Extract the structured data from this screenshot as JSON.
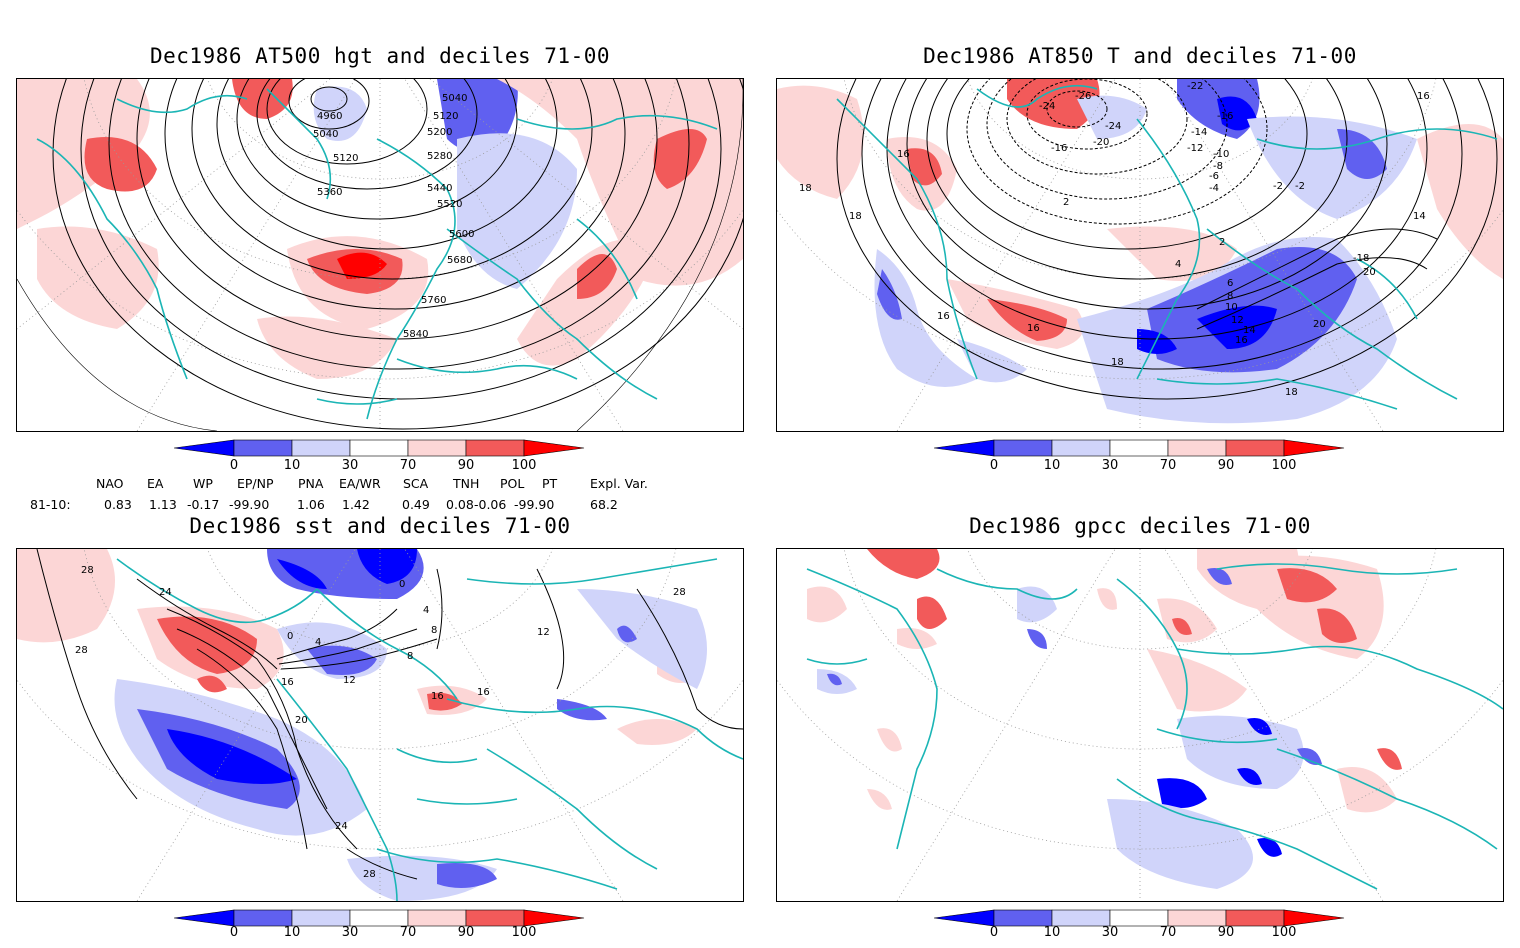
{
  "panels": [
    {
      "title": "Dec1986 AT500 hgt and deciles 71-00"
    },
    {
      "title": "Dec1986 AT850 T and deciles 71-00"
    },
    {
      "title": "Dec1986 sst and deciles 71-00"
    },
    {
      "title": "Dec1986 gpcc deciles 71-00"
    }
  ],
  "colorbar": {
    "ticks": [
      "0",
      "10",
      "30",
      "70",
      "90",
      "100"
    ],
    "colors": [
      "#0000ff",
      "#6060f0",
      "#d0d4fa",
      "#ffffff",
      "#fcd6d6",
      "#f25a5a",
      "#ff0000"
    ]
  },
  "indices": {
    "headers": [
      "NAO",
      "EA",
      "WP",
      "EP/NP",
      "PNA",
      "EA/WR",
      "SCA",
      "TNH",
      "POL",
      "PT",
      "Expl. Var."
    ],
    "row_label": "81-10:",
    "values": [
      "0.83",
      "1.13",
      "-0.17",
      "-99.90",
      "1.06",
      "1.42",
      "0.49",
      "0.08",
      "-0.06",
      "-99.90",
      "68.2"
    ]
  },
  "contour_labels": {
    "hgt": [
      "4960",
      "5040",
      "5040",
      "5120",
      "5120",
      "5200",
      "5280",
      "5360",
      "5440",
      "5520",
      "5600",
      "5680",
      "5760",
      "5840"
    ],
    "t850": [
      "-24",
      "-26",
      "-24",
      "-22",
      "-20",
      "-16",
      "-16",
      "-14",
      "-12",
      "-10",
      "-8",
      "-6",
      "-4",
      "-2",
      "2",
      "2",
      "4",
      "6",
      "8",
      "10",
      "12",
      "14",
      "14",
      "16",
      "16",
      "16",
      "16",
      "18",
      "18",
      "18",
      "18",
      "20",
      "20",
      "-18",
      "-2",
      "16"
    ],
    "sst": [
      "28",
      "28",
      "24",
      "24",
      "20",
      "16",
      "16",
      "16",
      "12",
      "12",
      "8",
      "8",
      "4",
      "4",
      "0",
      "0",
      "28",
      "28"
    ]
  },
  "colors": {
    "coast": "#1bb5b5",
    "grid": "#9a9a9a"
  }
}
